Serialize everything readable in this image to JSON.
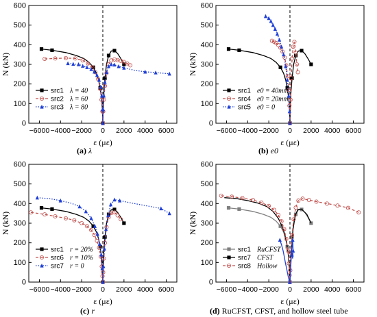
{
  "chart_data": [
    {
      "type": "line",
      "panel_label": "(a)",
      "caption_rest": "λ",
      "xlabel": "ε (με)",
      "ylabel": "N (kN)",
      "xlim": [
        -7000,
        7000
      ],
      "ylim": [
        0,
        600
      ],
      "xticks": [
        -6000,
        -4000,
        -2000,
        0,
        2000,
        4000,
        6000
      ],
      "yticks": [
        0,
        100,
        200,
        300,
        400,
        500,
        600
      ],
      "dashed_zero_line": true,
      "legend_position": "lower-left",
      "series": [
        {
          "name": "src1",
          "param_label": "λ = 40",
          "color": "#000000",
          "line": "solid",
          "marker": "square",
          "x": [
            -5800,
            -4800,
            -3500,
            -2500,
            -1800,
            -1300,
            -900,
            -600,
            -400,
            -250,
            -150,
            -80,
            -30,
            0,
            20,
            50,
            100,
            200,
            350,
            550,
            800,
            1100,
            1400,
            1700,
            2000
          ],
          "y": [
            378,
            372,
            360,
            345,
            330,
            310,
            285,
            255,
            220,
            180,
            140,
            100,
            50,
            0,
            40,
            100,
            160,
            230,
            300,
            345,
            368,
            370,
            355,
            330,
            300
          ],
          "marker_idx": [
            0,
            1,
            6,
            9,
            13,
            17,
            19,
            21,
            24
          ]
        },
        {
          "name": "src2",
          "param_label": "λ = 60",
          "color": "#c0504d",
          "line": "dash",
          "marker": "circle",
          "x": [
            -5500,
            -4500,
            -3500,
            -2600,
            -1900,
            -1400,
            -1000,
            -700,
            -450,
            -250,
            -120,
            -40,
            0,
            40,
            100,
            200,
            350,
            550,
            800,
            1100,
            1400,
            1700,
            2000,
            2300,
            2600
          ],
          "y": [
            328,
            330,
            332,
            330,
            320,
            305,
            285,
            260,
            225,
            175,
            120,
            60,
            0,
            60,
            120,
            190,
            255,
            300,
            320,
            325,
            322,
            318,
            312,
            305,
            295
          ],
          "marker_idx": [
            0,
            1,
            2,
            3,
            4,
            5,
            6,
            7,
            8,
            9,
            10,
            11,
            12,
            13,
            14,
            15,
            16,
            17,
            18,
            19,
            20,
            21,
            22,
            23,
            24
          ]
        },
        {
          "name": "src3",
          "param_label": "λ = 80",
          "color": "#1f3fd6",
          "line": "dot",
          "marker": "triangle",
          "x": [
            -3300,
            -2800,
            -2300,
            -1900,
            -1500,
            -1100,
            -800,
            -550,
            -350,
            -200,
            -100,
            -30,
            0,
            30,
            100,
            200,
            350,
            550,
            800,
            1100,
            1500,
            2000,
            3000,
            4000,
            5000,
            6300
          ],
          "y": [
            305,
            302,
            300,
            292,
            285,
            275,
            262,
            245,
            220,
            185,
            140,
            70,
            0,
            70,
            140,
            210,
            260,
            290,
            300,
            298,
            290,
            282,
            270,
            262,
            258,
            252
          ],
          "marker_idx": [
            0,
            1,
            2,
            3,
            4,
            5,
            6,
            7,
            8,
            9,
            10,
            11,
            12,
            13,
            14,
            15,
            16,
            17,
            18,
            19,
            20,
            21,
            23,
            24,
            25
          ]
        }
      ]
    },
    {
      "type": "line",
      "panel_label": "(b)",
      "caption_rest": "e0",
      "xlabel": "ε (με)",
      "ylabel": "N (kN)",
      "xlim": [
        -7000,
        7000
      ],
      "ylim": [
        0,
        600
      ],
      "xticks": [
        -6000,
        -4000,
        -2000,
        0,
        2000,
        4000,
        6000
      ],
      "yticks": [
        0,
        100,
        200,
        300,
        400,
        500,
        600
      ],
      "dashed_zero_line": true,
      "legend_position": "lower-left",
      "series": [
        {
          "name": "src1",
          "param_label": "e0 = 40mm",
          "color": "#000000",
          "line": "solid",
          "marker": "square",
          "x": [
            -5800,
            -4800,
            -3500,
            -2500,
            -1800,
            -1300,
            -900,
            -600,
            -400,
            -250,
            -150,
            -80,
            -30,
            0,
            20,
            50,
            100,
            200,
            350,
            550,
            800,
            1100,
            1400,
            1700,
            2000
          ],
          "y": [
            378,
            372,
            360,
            345,
            330,
            310,
            285,
            255,
            220,
            180,
            140,
            100,
            50,
            0,
            40,
            100,
            160,
            230,
            300,
            345,
            368,
            370,
            355,
            330,
            300
          ],
          "marker_idx": [
            0,
            1,
            6,
            9,
            13,
            17,
            19,
            21,
            24
          ]
        },
        {
          "name": "src4",
          "param_label": "e0 = 20mm",
          "color": "#c0504d",
          "line": "dash",
          "marker": "circle",
          "x": [
            -1700,
            -1500,
            -1300,
            -1100,
            -900,
            -700,
            -500,
            -350,
            -220,
            -120,
            -50,
            0,
            50,
            120,
            200,
            300,
            420,
            550,
            650,
            750
          ],
          "y": [
            420,
            415,
            408,
            398,
            385,
            365,
            335,
            295,
            240,
            170,
            90,
            0,
            120,
            230,
            330,
            390,
            415,
            360,
            300,
            260
          ],
          "marker_idx": [
            0,
            1,
            2,
            3,
            4,
            5,
            6,
            7,
            8,
            9,
            10,
            11,
            12,
            13,
            14,
            15,
            16,
            17,
            18,
            19
          ]
        },
        {
          "name": "src5",
          "param_label": "e0 = 0",
          "color": "#1f3fd6",
          "line": "dot",
          "marker": "triangle",
          "x": [
            -2300,
            -2000,
            -1800,
            -1600,
            -1400,
            -1200,
            -1000,
            -800,
            -600,
            -400,
            -250,
            -120,
            -40,
            0
          ],
          "y": [
            545,
            535,
            520,
            500,
            480,
            455,
            425,
            390,
            350,
            290,
            220,
            140,
            60,
            0
          ],
          "marker_idx": [
            0,
            1,
            2,
            3,
            4,
            5,
            6,
            7,
            8,
            9,
            10,
            11,
            12,
            13
          ]
        }
      ]
    },
    {
      "type": "line",
      "panel_label": "(c)",
      "caption_rest": "r",
      "xlabel": "ε (με)",
      "ylabel": "N (kN)",
      "xlim": [
        -7000,
        7000
      ],
      "ylim": [
        0,
        600
      ],
      "xticks": [
        -6000,
        -4000,
        -2000,
        0,
        2000,
        4000,
        6000
      ],
      "yticks": [
        0,
        100,
        200,
        300,
        400,
        500,
        600
      ],
      "dashed_zero_line": true,
      "legend_position": "lower-left",
      "series": [
        {
          "name": "src1",
          "param_label": "r = 20%",
          "color": "#000000",
          "line": "solid",
          "marker": "square",
          "x": [
            -5800,
            -4800,
            -3500,
            -2500,
            -1800,
            -1300,
            -900,
            -600,
            -400,
            -250,
            -150,
            -80,
            -30,
            0,
            20,
            50,
            100,
            200,
            350,
            550,
            800,
            1100,
            1400,
            1700,
            2000
          ],
          "y": [
            378,
            372,
            360,
            345,
            330,
            310,
            285,
            255,
            220,
            180,
            140,
            100,
            50,
            0,
            40,
            100,
            160,
            230,
            300,
            345,
            368,
            370,
            355,
            330,
            300
          ],
          "marker_idx": [
            0,
            1,
            6,
            9,
            13,
            17,
            19,
            21,
            24
          ]
        },
        {
          "name": "src6",
          "param_label": "r = 10%",
          "color": "#c0504d",
          "line": "dash",
          "marker": "circle",
          "x": [
            -6800,
            -5500,
            -4500,
            -3500,
            -2700,
            -2000,
            -1500,
            -1100,
            -800,
            -550,
            -350,
            -200,
            -100,
            -30,
            0,
            30,
            100,
            200,
            350,
            550,
            800,
            1100,
            1400,
            1700
          ],
          "y": [
            355,
            345,
            335,
            325,
            315,
            300,
            285,
            265,
            240,
            210,
            175,
            130,
            80,
            30,
            0,
            50,
            120,
            200,
            280,
            330,
            352,
            355,
            340,
            320
          ],
          "marker_idx": [
            0,
            1,
            2,
            3,
            4,
            5,
            6,
            7,
            8,
            9,
            10,
            11,
            12,
            13,
            14,
            15,
            16,
            17,
            18,
            19,
            20,
            21,
            22,
            23
          ]
        },
        {
          "name": "src7",
          "param_label": "r = 0",
          "color": "#1f3fd6",
          "line": "dot",
          "marker": "triangle",
          "x": [
            -6200,
            -5000,
            -4000,
            -3000,
            -2200,
            -1600,
            -1100,
            -750,
            -500,
            -300,
            -150,
            -60,
            0,
            60,
            150,
            300,
            500,
            750,
            1100,
            1600,
            2500,
            3500,
            4500,
            5500,
            6300
          ],
          "y": [
            430,
            425,
            415,
            402,
            385,
            360,
            325,
            285,
            245,
            195,
            140,
            70,
            0,
            80,
            170,
            270,
            340,
            395,
            420,
            415,
            405,
            395,
            385,
            375,
            350
          ],
          "marker_idx": [
            0,
            2,
            4,
            5,
            6,
            7,
            8,
            9,
            10,
            11,
            12,
            13,
            14,
            15,
            16,
            17,
            18,
            19,
            23,
            24
          ]
        }
      ]
    },
    {
      "type": "line",
      "panel_label": "(d)",
      "caption_rest": "RuCFST, CFST, and hollow steel tube",
      "xlabel": "ε (με)",
      "ylabel": "N (kN)",
      "xlim": [
        -7000,
        7000
      ],
      "ylim": [
        0,
        600
      ],
      "xticks": [
        -6000,
        -4000,
        -2000,
        0,
        2000,
        4000,
        6000
      ],
      "yticks": [
        0,
        100,
        200,
        300,
        400,
        500,
        600
      ],
      "dashed_zero_line": true,
      "legend_position": "lower-left",
      "series": [
        {
          "name": "src1",
          "param_label": "RuCFST",
          "color": "#7f7f7f",
          "line": "solid",
          "marker": "square",
          "x": [
            -5800,
            -4800,
            -3500,
            -2500,
            -1800,
            -1300,
            -900,
            -600,
            -400,
            -250,
            -150,
            -80,
            -30,
            0,
            20,
            50,
            100,
            200,
            350,
            550,
            800,
            1100,
            1400,
            1700,
            2000
          ],
          "y": [
            378,
            372,
            360,
            345,
            330,
            310,
            285,
            255,
            220,
            180,
            140,
            100,
            50,
            0,
            40,
            100,
            160,
            230,
            300,
            345,
            368,
            370,
            355,
            330,
            300
          ],
          "marker_idx": [
            0,
            1,
            6,
            9,
            13,
            17,
            19,
            21,
            24
          ]
        },
        {
          "name": "src7",
          "param_label": "CFST",
          "color": "#000000",
          "line": "solid",
          "marker": "square",
          "x": [
            -6200,
            -5000,
            -4000,
            -3000,
            -2200,
            -1600,
            -1100,
            -750,
            -500,
            -300,
            -150,
            -60,
            0,
            60,
            150,
            300,
            500,
            750,
            1100,
            1600,
            2000
          ],
          "y": [
            430,
            425,
            415,
            402,
            385,
            360,
            325,
            285,
            245,
            195,
            140,
            70,
            0,
            80,
            170,
            270,
            340,
            370,
            372,
            345,
            300
          ],
          "marker_idx": []
        },
        {
          "name": "src8",
          "param_label": "Hollow",
          "color": "#c0504d",
          "line": "dash",
          "marker": "circle",
          "x": [
            -6500,
            -5500,
            -4500,
            -3500,
            -2700,
            -2000,
            -1500,
            -1100,
            -800,
            -550,
            -350,
            -200,
            -100,
            -30,
            0,
            30,
            100,
            200,
            350,
            550,
            800,
            1200,
            1800,
            2500,
            3500,
            4500,
            5500,
            6500
          ],
          "y": [
            440,
            435,
            428,
            418,
            405,
            388,
            368,
            342,
            310,
            270,
            220,
            160,
            95,
            35,
            0,
            60,
            150,
            240,
            320,
            380,
            415,
            425,
            418,
            410,
            400,
            390,
            378,
            355
          ],
          "marker_idx": [
            0,
            1,
            2,
            3,
            4,
            5,
            6,
            7,
            8,
            9,
            10,
            11,
            12,
            13,
            14,
            15,
            16,
            17,
            18,
            19,
            20,
            21,
            22,
            23,
            24,
            25,
            26,
            27
          ]
        },
        {
          "name": "",
          "param_label": "",
          "color": "#1f3fd6",
          "line": "solid",
          "marker": "triangle",
          "x": [
            -950,
            -800,
            -650,
            -520,
            -420,
            -320,
            -230,
            -150,
            -80,
            -30,
            0,
            60,
            150,
            260,
            300,
            250,
            200,
            150
          ],
          "y": [
            215,
            190,
            160,
            125,
            95,
            70,
            45,
            25,
            10,
            0,
            0,
            60,
            150,
            215,
            160,
            120,
            140,
            130
          ],
          "marker_idx": [
            0,
            9,
            10,
            13,
            14,
            16
          ]
        }
      ]
    }
  ]
}
